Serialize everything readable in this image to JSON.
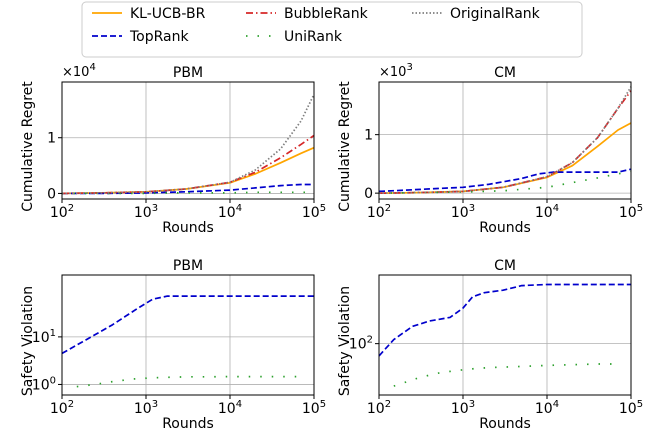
{
  "legend": {
    "entries": [
      {
        "name": "KL-UCB-BR",
        "color": "#ffa500",
        "dash": "solid"
      },
      {
        "name": "TopRank",
        "color": "#0000cc",
        "dash": "dashed"
      },
      {
        "name": "BubbleRank",
        "color": "#d62728",
        "dash": "dashdot"
      },
      {
        "name": "UniRank",
        "color": "#2ca02c",
        "dash": "loosedot"
      },
      {
        "name": "OriginalRank",
        "color": "#7f7f7f",
        "dash": "dotted"
      }
    ]
  },
  "chart_data": [
    {
      "type": "line",
      "title": "PBM",
      "xlabel": "Rounds",
      "ylabel": "Cumulative Regret",
      "xscale": "log",
      "yscale": "linear",
      "multiplier": "×10^4",
      "xlim": [
        100,
        100000
      ],
      "ylim": [
        -0.1,
        2.0
      ],
      "xticks": [
        {
          "v": 100,
          "label": "10^2"
        },
        {
          "v": 1000,
          "label": "10^3"
        },
        {
          "v": 10000,
          "label": "10^4"
        },
        {
          "v": 100000,
          "label": "10^5"
        }
      ],
      "yticks": [
        {
          "v": 0,
          "label": "0"
        },
        {
          "v": 1,
          "label": "1"
        }
      ],
      "grid": true,
      "series": [
        {
          "name": "KL-UCB-BR",
          "x": [
            100,
            300,
            1000,
            3000,
            10000,
            20000,
            40000,
            70000,
            100000
          ],
          "y": [
            0.0,
            0.01,
            0.03,
            0.08,
            0.19,
            0.35,
            0.55,
            0.72,
            0.82
          ]
        },
        {
          "name": "TopRank",
          "x": [
            100,
            300,
            1000,
            3000,
            10000,
            20000,
            40000,
            70000,
            100000
          ],
          "y": [
            0.0,
            0.0,
            0.01,
            0.03,
            0.06,
            0.1,
            0.14,
            0.16,
            0.16
          ]
        },
        {
          "name": "BubbleRank",
          "x": [
            100,
            300,
            1000,
            3000,
            10000,
            20000,
            40000,
            70000,
            100000
          ],
          "y": [
            0.0,
            0.01,
            0.03,
            0.08,
            0.2,
            0.38,
            0.64,
            0.88,
            1.04
          ]
        },
        {
          "name": "UniRank",
          "x": [
            100,
            200,
            400,
            700,
            1000,
            2000,
            4000,
            7000,
            10000,
            20000,
            40000,
            70000,
            100000
          ],
          "y": [
            0.0,
            0.0,
            0.0,
            0.0,
            0.0,
            0.01,
            0.01,
            0.01,
            0.01,
            0.02,
            0.02,
            0.02,
            0.02
          ]
        },
        {
          "name": "OriginalRank",
          "x": [
            100,
            300,
            1000,
            3000,
            10000,
            20000,
            40000,
            70000,
            100000
          ],
          "y": [
            0.0,
            0.01,
            0.03,
            0.08,
            0.2,
            0.42,
            0.8,
            1.3,
            1.78
          ]
        }
      ]
    },
    {
      "type": "line",
      "title": "CM",
      "xlabel": "Rounds",
      "ylabel": "Cumulative Regret",
      "xscale": "log",
      "yscale": "linear",
      "multiplier": "×10^3",
      "xlim": [
        100,
        100000
      ],
      "ylim": [
        -0.1,
        1.9
      ],
      "xticks": [
        {
          "v": 100,
          "label": "10^2"
        },
        {
          "v": 1000,
          "label": "10^3"
        },
        {
          "v": 10000,
          "label": "10^4"
        },
        {
          "v": 100000,
          "label": "10^5"
        }
      ],
      "yticks": [
        {
          "v": 0,
          "label": "0"
        },
        {
          "v": 1,
          "label": "1"
        }
      ],
      "grid": true,
      "series": [
        {
          "name": "KL-UCB-BR",
          "x": [
            100,
            300,
            1000,
            3000,
            10000,
            20000,
            40000,
            70000,
            100000
          ],
          "y": [
            0.0,
            0.01,
            0.03,
            0.1,
            0.27,
            0.47,
            0.8,
            1.08,
            1.2
          ]
        },
        {
          "name": "TopRank",
          "x": [
            100,
            200,
            500,
            1000,
            2000,
            5000,
            8000,
            12000,
            20000,
            40000,
            70000,
            100000
          ],
          "y": [
            0.03,
            0.05,
            0.08,
            0.1,
            0.15,
            0.25,
            0.33,
            0.36,
            0.36,
            0.36,
            0.36,
            0.41
          ]
        },
        {
          "name": "BubbleRank",
          "x": [
            100,
            300,
            1000,
            3000,
            10000,
            20000,
            40000,
            70000,
            100000
          ],
          "y": [
            0.0,
            0.01,
            0.03,
            0.1,
            0.28,
            0.52,
            0.95,
            1.45,
            1.75
          ]
        },
        {
          "name": "UniRank",
          "x": [
            100,
            300,
            1000,
            3000,
            10000,
            20000,
            40000,
            70000,
            100000
          ],
          "y": [
            0.0,
            0.01,
            0.02,
            0.04,
            0.1,
            0.18,
            0.26,
            0.33,
            0.37
          ]
        },
        {
          "name": "OriginalRank",
          "x": [
            100,
            300,
            1000,
            3000,
            10000,
            20000,
            40000,
            70000,
            100000
          ],
          "y": [
            0.0,
            0.01,
            0.03,
            0.1,
            0.28,
            0.52,
            0.95,
            1.45,
            1.82
          ]
        }
      ]
    },
    {
      "type": "line",
      "title": "PBM",
      "xlabel": "Rounds",
      "ylabel": "Safety Violation",
      "xscale": "log",
      "yscale": "log",
      "xlim": [
        100,
        100000
      ],
      "ylim": [
        0.6,
        200
      ],
      "xticks": [
        {
          "v": 100,
          "label": "10^2"
        },
        {
          "v": 1000,
          "label": "10^3"
        },
        {
          "v": 10000,
          "label": "10^4"
        },
        {
          "v": 100000,
          "label": "10^5"
        }
      ],
      "yticks": [
        {
          "v": 1,
          "label": "10^0"
        },
        {
          "v": 10,
          "label": "10^1"
        }
      ],
      "grid": true,
      "series": [
        {
          "name": "TopRank",
          "x": [
            100,
            200,
            400,
            800,
            1200,
            1800,
            3000,
            10000,
            40000,
            100000
          ],
          "y": [
            4.5,
            9,
            18,
            40,
            62,
            72,
            72,
            72,
            72,
            72
          ]
        },
        {
          "name": "UniRank",
          "x": [
            150,
            250,
            400,
            700,
            1200,
            2000,
            3500,
            6000,
            10000,
            20000,
            40000,
            70000
          ],
          "y": [
            0.9,
            1.0,
            1.15,
            1.3,
            1.38,
            1.42,
            1.45,
            1.45,
            1.46,
            1.46,
            1.46,
            1.46
          ]
        }
      ]
    },
    {
      "type": "line",
      "title": "CM",
      "xlabel": "Rounds",
      "ylabel": "Safety Violation",
      "xscale": "log",
      "yscale": "log",
      "xlim": [
        100,
        100000
      ],
      "ylim": [
        30,
        500
      ],
      "xticks": [
        {
          "v": 100,
          "label": "10^2"
        },
        {
          "v": 1000,
          "label": "10^3"
        },
        {
          "v": 10000,
          "label": "10^4"
        },
        {
          "v": 100000,
          "label": "10^5"
        }
      ],
      "yticks": [
        {
          "v": 100,
          "label": "10^2"
        }
      ],
      "grid": true,
      "series": [
        {
          "name": "TopRank",
          "x": [
            100,
            150,
            250,
            400,
            700,
            1000,
            1300,
            1800,
            3000,
            5000,
            10000,
            30000,
            100000
          ],
          "y": [
            75,
            110,
            150,
            170,
            185,
            230,
            300,
            330,
            350,
            390,
            400,
            400,
            400
          ]
        },
        {
          "name": "UniRank",
          "x": [
            150,
            300,
            500,
            800,
            1200,
            2000,
            3500,
            6000,
            10000,
            20000,
            40000,
            70000
          ],
          "y": [
            37,
            45,
            50,
            53,
            55,
            57,
            58,
            59,
            60,
            61,
            62,
            62
          ]
        }
      ]
    }
  ]
}
